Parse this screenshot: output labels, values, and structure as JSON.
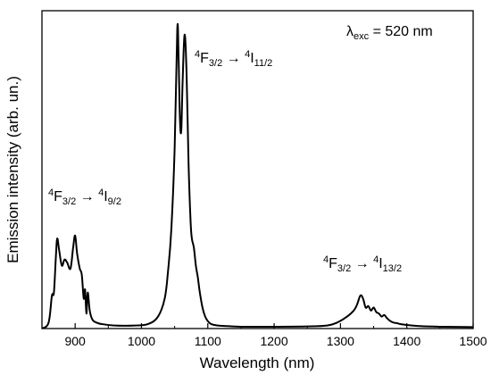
{
  "chart_data": {
    "type": "line",
    "title": "",
    "xlabel": "Wavelength (nm)",
    "ylabel": "Emission intensity (arb. un.)",
    "xlim": [
      850,
      1500
    ],
    "ylim": [
      0,
      1.06
    ],
    "xticks": [
      900,
      1000,
      1100,
      1200,
      1300,
      1400,
      1500
    ],
    "xtick_labels": [
      "900",
      "1000",
      "1100",
      "1200",
      "1300",
      "1400",
      "1500"
    ],
    "y_tick_labels_shown": false,
    "grid": false,
    "line_color": "#000000",
    "annotations": {
      "excitation": {
        "prefix": "λ",
        "sub": "exc",
        "rest": " = 520 nm"
      },
      "transition_1": {
        "sup1": "4",
        "main1": "F",
        "sub1": "3/2",
        "arrow": " → ",
        "sup2": "4",
        "main2": "I",
        "sub2": "9/2"
      },
      "transition_2": {
        "sup1": "4",
        "main1": "F",
        "sub1": "3/2",
        "arrow": " → ",
        "sup2": "4",
        "main2": "I",
        "sub2": "11/2"
      },
      "transition_3": {
        "sup1": "4",
        "main1": "F",
        "sub1": "3/2",
        "arrow": " → ",
        "sup2": "4",
        "main2": "I",
        "sub2": "13/2"
      }
    },
    "series": [
      {
        "x": [
          850,
          860,
          865,
          868,
          871,
          873,
          876,
          880,
          884,
          888,
          893,
          897,
          900,
          903,
          907,
          910,
          913,
          915,
          917,
          919,
          922,
          926,
          932,
          940,
          960,
          990,
          1010,
          1025,
          1035,
          1040,
          1045,
          1050,
          1054,
          1056,
          1058,
          1060,
          1062,
          1065,
          1068,
          1071,
          1074,
          1076,
          1079,
          1082,
          1085,
          1088,
          1092,
          1096,
          1100,
          1105,
          1115,
          1130,
          1150,
          1200,
          1250,
          1280,
          1295,
          1310,
          1320,
          1325,
          1330,
          1334,
          1338,
          1342,
          1346,
          1350,
          1354,
          1358,
          1362,
          1366,
          1370,
          1375,
          1380,
          1385,
          1390,
          1400,
          1420,
          1450,
          1500
        ],
        "y": [
          0.0,
          0.02,
          0.11,
          0.12,
          0.24,
          0.3,
          0.26,
          0.21,
          0.23,
          0.22,
          0.2,
          0.27,
          0.31,
          0.25,
          0.2,
          0.18,
          0.1,
          0.13,
          0.05,
          0.12,
          0.06,
          0.03,
          0.02,
          0.015,
          0.01,
          0.01,
          0.015,
          0.04,
          0.1,
          0.19,
          0.33,
          0.6,
          1.0,
          0.9,
          0.7,
          0.66,
          0.82,
          0.98,
          0.85,
          0.55,
          0.36,
          0.3,
          0.27,
          0.21,
          0.17,
          0.12,
          0.07,
          0.04,
          0.025,
          0.015,
          0.01,
          0.008,
          0.006,
          0.006,
          0.007,
          0.01,
          0.02,
          0.04,
          0.06,
          0.08,
          0.11,
          0.1,
          0.07,
          0.075,
          0.06,
          0.07,
          0.055,
          0.05,
          0.04,
          0.045,
          0.035,
          0.025,
          0.02,
          0.018,
          0.015,
          0.012,
          0.008,
          0.006,
          0.005
        ]
      }
    ]
  }
}
